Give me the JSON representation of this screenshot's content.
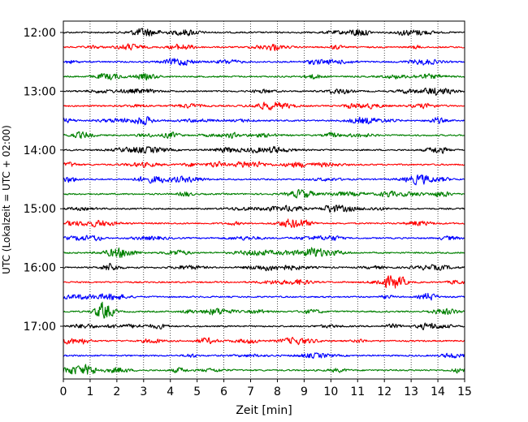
{
  "chart_data": {
    "type": "line",
    "title": "",
    "xlabel": "Zeit  [min]",
    "ylabel": "UTC (Lokalzeit = UTC + 02:00)",
    "xlim": [
      0,
      15
    ],
    "x_ticks": [
      0,
      1,
      2,
      3,
      4,
      5,
      6,
      7,
      8,
      9,
      10,
      11,
      12,
      13,
      14,
      15
    ],
    "x_tick_labels": [
      "0",
      "1",
      "2",
      "3",
      "4",
      "5",
      "6",
      "7",
      "8",
      "9",
      "10",
      "11",
      "12",
      "13",
      "14",
      "15"
    ],
    "y_tick_labels": [
      "12:00",
      "13:00",
      "14:00",
      "15:00",
      "16:00",
      "17:00"
    ],
    "trace_start_hour": 12,
    "trace_interval_min": 15,
    "trace_count": 24,
    "trace_colors": [
      "#000000",
      "#ff0000",
      "#0000ff",
      "#008000"
    ],
    "grid": "x-dotted"
  }
}
